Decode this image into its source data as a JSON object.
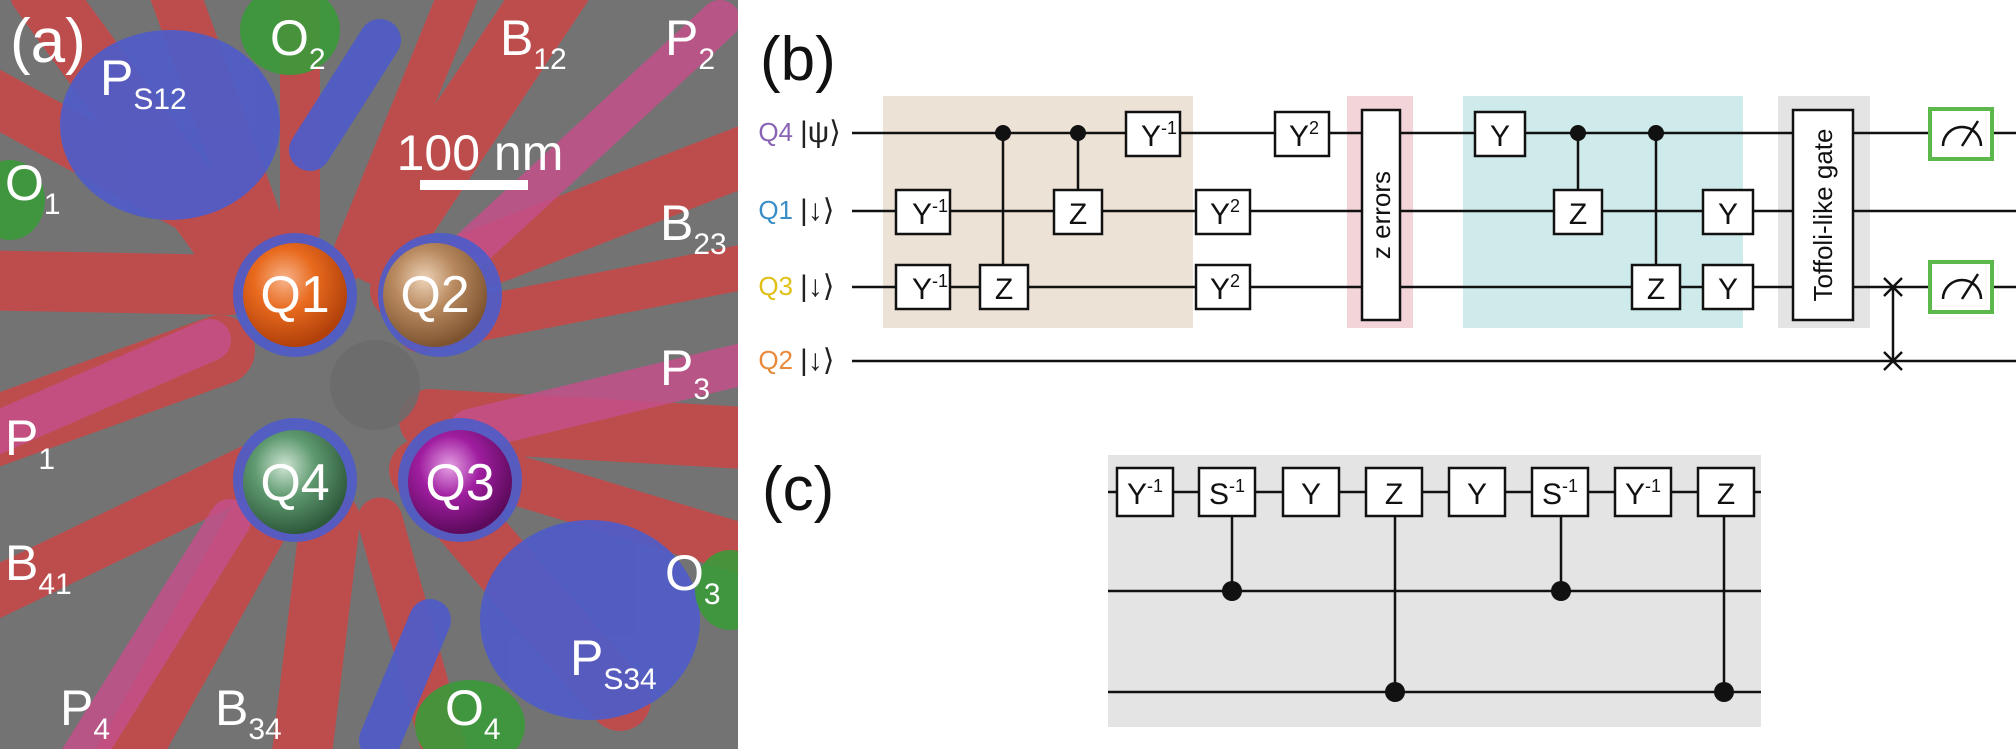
{
  "colors": {
    "qubit_q1": "#e86a1e",
    "qubit_q2": "#b98a60",
    "qubit_q3": "#a01ea0",
    "qubit_q4": "#4f8a60",
    "label_q4": "#8a64b4",
    "label_q1": "#3a8ec8",
    "label_q3": "#e0c018",
    "label_q2": "#e88a3a",
    "encode_block": "#ede2d6",
    "error_block": "#f3d4d8",
    "decode_block": "#cfeaea",
    "toffoli_block": "#e4e4e4",
    "measure": "#5cb84a",
    "circuit_c_block": "#e4e4e4"
  },
  "panel_a": {
    "label": "(a)",
    "scale_bar": "100 nm",
    "qubits": [
      "Q1",
      "Q2",
      "Q3",
      "Q4"
    ],
    "gates": [
      {
        "main": "O",
        "sub": "2"
      },
      {
        "main": "B",
        "sub": "12"
      },
      {
        "main": "P",
        "sub": "2"
      },
      {
        "main": "P",
        "sub": "S12"
      },
      {
        "main": "O",
        "sub": "1"
      },
      {
        "main": "B",
        "sub": "23"
      },
      {
        "main": "P",
        "sub": "3"
      },
      {
        "main": "P",
        "sub": "1"
      },
      {
        "main": "B",
        "sub": "41"
      },
      {
        "main": "O",
        "sub": "3"
      },
      {
        "main": "P",
        "sub": "S34"
      },
      {
        "main": "P",
        "sub": "4"
      },
      {
        "main": "B",
        "sub": "34"
      },
      {
        "main": "O",
        "sub": "4"
      }
    ]
  },
  "panel_b": {
    "label": "(b)",
    "rows": [
      {
        "qubit": "Q4",
        "state": "|ψ⟩"
      },
      {
        "qubit": "Q1",
        "state": "|↓⟩"
      },
      {
        "qubit": "Q3",
        "state": "|↓⟩"
      },
      {
        "qubit": "Q2",
        "state": "|↓⟩"
      }
    ],
    "gates": {
      "y_inv": "Y",
      "y_inv_sup": "-1",
      "y_sq": "Y",
      "y_sq_sup": "2",
      "y": "Y",
      "z": "Z"
    },
    "z_errors": "z errors",
    "toffoli": "Toffoli-like gate"
  },
  "panel_c": {
    "label": "(c)",
    "gates": [
      {
        "main": "Y",
        "sup": "-1"
      },
      {
        "main": "S",
        "sup": "-1"
      },
      {
        "main": "Y",
        "sup": ""
      },
      {
        "main": "Z",
        "sup": ""
      },
      {
        "main": "Y",
        "sup": ""
      },
      {
        "main": "S",
        "sup": "-1"
      },
      {
        "main": "Y",
        "sup": "-1"
      },
      {
        "main": "Z",
        "sup": ""
      }
    ]
  }
}
